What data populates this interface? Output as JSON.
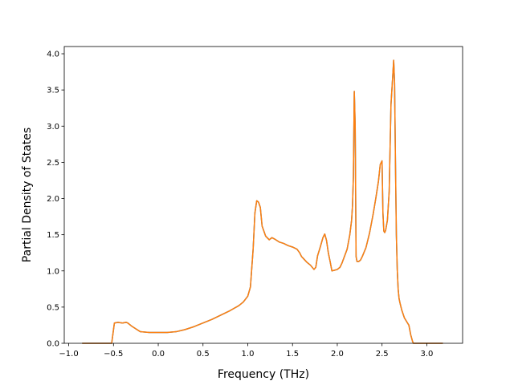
{
  "chart_data": {
    "type": "line",
    "title": "",
    "xlabel": "Frequency (THz)",
    "ylabel": "Partial Density of States",
    "xlim": [
      -1.05,
      3.4
    ],
    "ylim": [
      0.0,
      4.1
    ],
    "xticks": [
      -1.0,
      -0.5,
      0.0,
      0.5,
      1.0,
      1.5,
      2.0,
      2.5,
      3.0
    ],
    "xtick_labels": [
      "−1.0",
      "−0.5",
      "0.0",
      "0.5",
      "1.0",
      "1.5",
      "2.0",
      "2.5",
      "3.0"
    ],
    "yticks": [
      0.0,
      0.5,
      1.0,
      1.5,
      2.0,
      2.5,
      3.0,
      3.5,
      4.0
    ],
    "ytick_labels": [
      "0.0",
      "0.5",
      "1.0",
      "1.5",
      "2.0",
      "2.5",
      "3.0",
      "3.5",
      "4.0"
    ],
    "grid": false,
    "series": [
      {
        "color": "#1f77b4",
        "x": [
          -0.85,
          -0.52,
          -0.49,
          -0.45,
          -0.4,
          -0.36,
          -0.34,
          -0.3,
          -0.25,
          -0.2,
          -0.1,
          0.0,
          0.1,
          0.2,
          0.3,
          0.4,
          0.5,
          0.6,
          0.7,
          0.8,
          0.9,
          0.95,
          1.0,
          1.03,
          1.06,
          1.08,
          1.1,
          1.12,
          1.14,
          1.16,
          1.2,
          1.24,
          1.27,
          1.3,
          1.35,
          1.4,
          1.45,
          1.5,
          1.55,
          1.58,
          1.6,
          1.63,
          1.66,
          1.7,
          1.74,
          1.76,
          1.78,
          1.81,
          1.84,
          1.86,
          1.88,
          1.9,
          1.92,
          1.94,
          1.97,
          2.0,
          2.03,
          2.05,
          2.08,
          2.11,
          2.14,
          2.16,
          2.17,
          2.18,
          2.19,
          2.2,
          2.21,
          2.22,
          2.24,
          2.26,
          2.28,
          2.32,
          2.36,
          2.4,
          2.43,
          2.46,
          2.48,
          2.5,
          2.51,
          2.52,
          2.53,
          2.54,
          2.56,
          2.58,
          2.6,
          2.62,
          2.63,
          2.64,
          2.65,
          2.66,
          2.67,
          2.68,
          2.69,
          2.7,
          2.72,
          2.75,
          2.8,
          2.82,
          2.84,
          2.85,
          2.9,
          3.18
        ],
        "y": [
          0.0,
          0.0,
          0.28,
          0.29,
          0.28,
          0.29,
          0.28,
          0.24,
          0.2,
          0.16,
          0.15,
          0.15,
          0.15,
          0.16,
          0.19,
          0.23,
          0.28,
          0.33,
          0.39,
          0.45,
          0.52,
          0.57,
          0.65,
          0.78,
          1.3,
          1.8,
          1.97,
          1.95,
          1.88,
          1.62,
          1.48,
          1.43,
          1.46,
          1.44,
          1.4,
          1.38,
          1.35,
          1.33,
          1.3,
          1.25,
          1.2,
          1.16,
          1.12,
          1.08,
          1.02,
          1.05,
          1.21,
          1.33,
          1.46,
          1.51,
          1.42,
          1.25,
          1.13,
          1.0,
          1.01,
          1.02,
          1.05,
          1.1,
          1.2,
          1.3,
          1.5,
          1.7,
          1.9,
          2.3,
          3.48,
          3.0,
          1.2,
          1.13,
          1.13,
          1.15,
          1.2,
          1.32,
          1.52,
          1.78,
          2.0,
          2.24,
          2.47,
          2.52,
          1.8,
          1.55,
          1.53,
          1.56,
          1.7,
          2.1,
          3.3,
          3.7,
          3.91,
          3.6,
          2.5,
          1.5,
          1.02,
          0.75,
          0.62,
          0.56,
          0.46,
          0.35,
          0.25,
          0.12,
          0.03,
          0.0,
          0.0,
          0.0
        ]
      },
      {
        "color": "#ff7f0e",
        "x": [
          -0.85,
          -0.52,
          -0.49,
          -0.45,
          -0.4,
          -0.36,
          -0.34,
          -0.3,
          -0.25,
          -0.2,
          -0.1,
          0.0,
          0.1,
          0.2,
          0.3,
          0.4,
          0.5,
          0.6,
          0.7,
          0.8,
          0.9,
          0.95,
          1.0,
          1.03,
          1.06,
          1.08,
          1.1,
          1.12,
          1.14,
          1.16,
          1.2,
          1.24,
          1.27,
          1.3,
          1.35,
          1.4,
          1.45,
          1.5,
          1.55,
          1.58,
          1.6,
          1.63,
          1.66,
          1.7,
          1.74,
          1.76,
          1.78,
          1.81,
          1.84,
          1.86,
          1.88,
          1.9,
          1.92,
          1.94,
          1.97,
          2.0,
          2.03,
          2.05,
          2.08,
          2.11,
          2.14,
          2.16,
          2.17,
          2.18,
          2.19,
          2.2,
          2.21,
          2.22,
          2.24,
          2.26,
          2.28,
          2.32,
          2.36,
          2.4,
          2.43,
          2.46,
          2.48,
          2.5,
          2.51,
          2.52,
          2.53,
          2.54,
          2.56,
          2.58,
          2.6,
          2.62,
          2.63,
          2.64,
          2.65,
          2.66,
          2.67,
          2.68,
          2.69,
          2.7,
          2.72,
          2.75,
          2.8,
          2.82,
          2.84,
          2.85,
          2.9,
          3.18
        ],
        "y": [
          0.0,
          0.0,
          0.28,
          0.29,
          0.28,
          0.29,
          0.28,
          0.24,
          0.2,
          0.16,
          0.15,
          0.15,
          0.15,
          0.16,
          0.19,
          0.23,
          0.28,
          0.33,
          0.39,
          0.45,
          0.52,
          0.57,
          0.65,
          0.78,
          1.3,
          1.8,
          1.97,
          1.95,
          1.88,
          1.62,
          1.48,
          1.43,
          1.46,
          1.44,
          1.4,
          1.38,
          1.35,
          1.33,
          1.3,
          1.25,
          1.2,
          1.16,
          1.12,
          1.08,
          1.02,
          1.05,
          1.21,
          1.33,
          1.46,
          1.51,
          1.42,
          1.25,
          1.13,
          1.0,
          1.01,
          1.02,
          1.05,
          1.1,
          1.2,
          1.3,
          1.5,
          1.7,
          1.9,
          2.3,
          3.48,
          3.0,
          1.2,
          1.13,
          1.13,
          1.15,
          1.2,
          1.32,
          1.52,
          1.78,
          2.0,
          2.24,
          2.47,
          2.52,
          1.8,
          1.55,
          1.53,
          1.56,
          1.7,
          2.1,
          3.3,
          3.7,
          3.91,
          3.6,
          2.5,
          1.5,
          1.02,
          0.75,
          0.62,
          0.56,
          0.46,
          0.35,
          0.25,
          0.12,
          0.03,
          0.0,
          0.0,
          0.0
        ]
      }
    ]
  }
}
